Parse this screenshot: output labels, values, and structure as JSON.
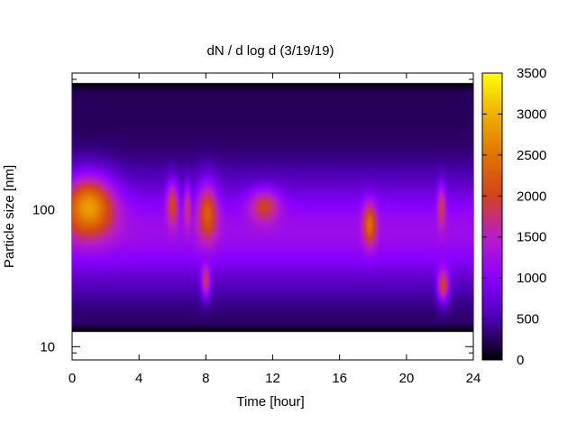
{
  "chart_data": {
    "type": "heatmap",
    "title": "dN / d log d (3/19/19)",
    "xlabel": "Time [hour]",
    "ylabel": "Particle size [nm]",
    "xlim": [
      0,
      24
    ],
    "x_ticks": [
      "0",
      "4",
      "8",
      "12",
      "16",
      "20",
      "24"
    ],
    "y_scale": "log",
    "ylim": [
      8,
      1000
    ],
    "y_ticks": [
      "10",
      "100"
    ],
    "colorbar": {
      "range": [
        0,
        3500
      ],
      "ticks": [
        "0",
        "500",
        "1000",
        "1500",
        "2000",
        "2500",
        "3000",
        "3500"
      ],
      "colormap": [
        "#000000",
        "#4b00b0",
        "#8a00ff",
        "#b71ec8",
        "#d2421e",
        "#e07400",
        "#f0b000",
        "#ffff00"
      ]
    },
    "data_coverage": {
      "size_range_nm": [
        13,
        850
      ],
      "time_range_hour": [
        0,
        24
      ]
    },
    "features": [
      {
        "time_hour": 1.0,
        "size_nm": 110,
        "value": 2750
      },
      {
        "time_hour": 6.0,
        "size_nm": 115,
        "value": 2000
      },
      {
        "time_hour": 6.9,
        "size_nm": 110,
        "value": 1700
      },
      {
        "time_hour": 8.0,
        "size_nm": 30,
        "value": 2100
      },
      {
        "time_hour": 8.1,
        "size_nm": 100,
        "value": 2100
      },
      {
        "time_hour": 11.5,
        "size_nm": 110,
        "value": 1900
      },
      {
        "time_hour": 17.8,
        "size_nm": 80,
        "value": 2150
      },
      {
        "time_hour": 22.2,
        "size_nm": 28,
        "value": 2350
      },
      {
        "time_hour": 22.1,
        "size_nm": 110,
        "value": 1800
      }
    ],
    "grid": false,
    "legend": "colorbar-right"
  }
}
